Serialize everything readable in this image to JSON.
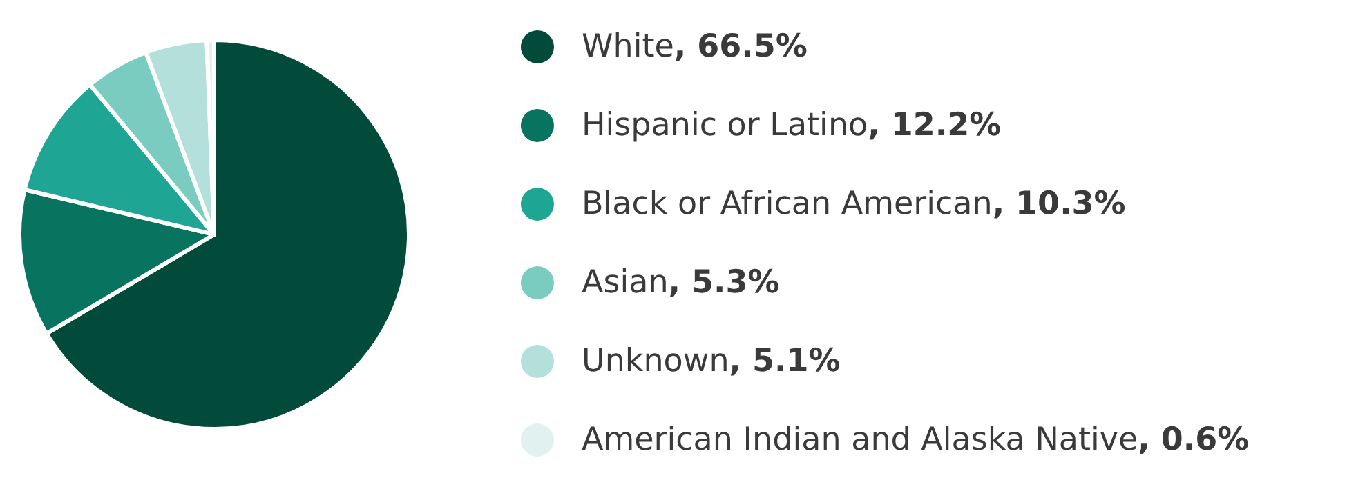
{
  "chart_data": {
    "type": "pie",
    "categories": [
      "White",
      "Hispanic or Latino",
      "Black or African American",
      "Asian",
      "Unknown",
      "American Indian and Alaska Native"
    ],
    "values": [
      66.5,
      12.2,
      10.3,
      5.3,
      5.1,
      0.6
    ],
    "value_labels": [
      ", 66.5%",
      ", 12.2%",
      ", 10.3%",
      ", 5.3%",
      ", 5.1%",
      ", 0.6%"
    ],
    "colors": [
      "#024b3b",
      "#08735f",
      "#1fa594",
      "#7accc1",
      "#b3e0db",
      "#e0f1ef"
    ],
    "legend": "right"
  }
}
